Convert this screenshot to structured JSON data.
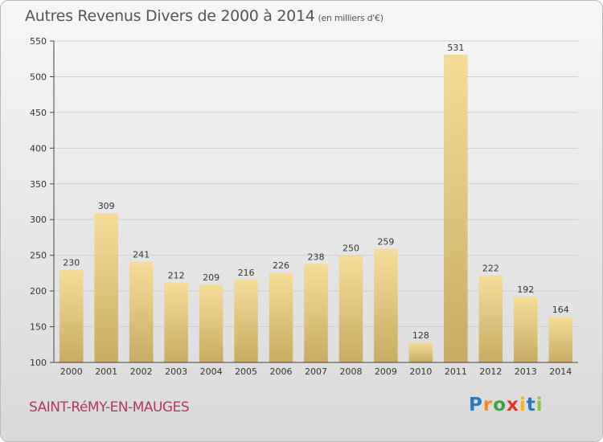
{
  "title": "Autres Revenus Divers de 2000 à 2014",
  "unit_label": "(en milliers d'€)",
  "commune": "SAINT-RéMY-EN-MAUGES",
  "logo_text": "Proxiti",
  "colors": {
    "bar_light": "#f5dc98",
    "bar_dark": "#c9ac62",
    "title": "#555555",
    "commune": "#b1395f",
    "grid": "#cfcfcf"
  },
  "chart_data": {
    "type": "bar",
    "categories": [
      "2000",
      "2001",
      "2002",
      "2003",
      "2004",
      "2005",
      "2006",
      "2007",
      "2008",
      "2009",
      "2010",
      "2011",
      "2012",
      "2013",
      "2014"
    ],
    "values": [
      230,
      309,
      241,
      212,
      209,
      216,
      226,
      238,
      250,
      259,
      128,
      531,
      222,
      192,
      164
    ],
    "ylim": [
      100,
      550
    ],
    "yticks": [
      100,
      150,
      200,
      250,
      300,
      350,
      400,
      450,
      500,
      550
    ],
    "grid": true,
    "xlabel": "",
    "ylabel": ""
  }
}
